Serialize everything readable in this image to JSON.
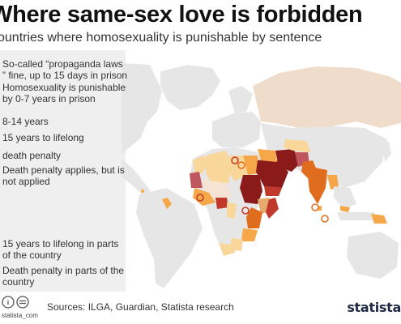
{
  "header": {
    "title": "Where same-sex love is forbidden",
    "subtitle": "ountries where homosexuality is punishable by sentence"
  },
  "legend": {
    "items": [
      {
        "label": "So-called “propaganda laws ” fine, up to 15 days in prison",
        "color": "#f5e4d4"
      },
      {
        "label": "Homosexuality is punishable by 0-7 years in prison",
        "color": "#f9d79a"
      },
      {
        "label": "8-14 years",
        "color": "#f5a74a"
      },
      {
        "label": "15 years to lifelong",
        "color": "#e06c1e"
      },
      {
        "label": "death penalty",
        "color": "#8b1a1a"
      },
      {
        "label": "Death penalty applies, but is not applied",
        "color": "#c0575e"
      },
      {
        "label": "15 years to lifelong in parts of the country",
        "color": "#e6aa6e"
      },
      {
        "label": "Death penalty in parts of the country",
        "color": "#c0392b"
      }
    ]
  },
  "footer": {
    "source": "Sources: ILGA, Guardian, Statista research",
    "handle": "statista_com",
    "logo": "statista"
  },
  "colors": {
    "land": "#e6e6e6",
    "russia": "#f0dccb"
  }
}
